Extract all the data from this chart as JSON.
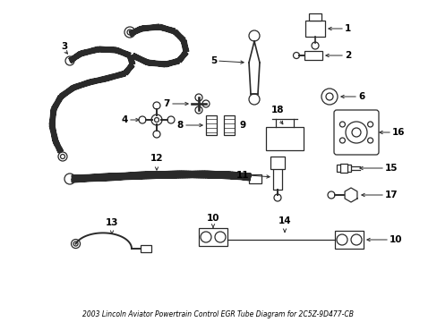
{
  "title": "2003 Lincoln Aviator Powertrain Control EGR Tube Diagram for 2C5Z-9D477-CB",
  "bg_color": "#ffffff",
  "line_color": "#2a2a2a",
  "fig_w": 4.89,
  "fig_h": 3.6,
  "dpi": 100
}
